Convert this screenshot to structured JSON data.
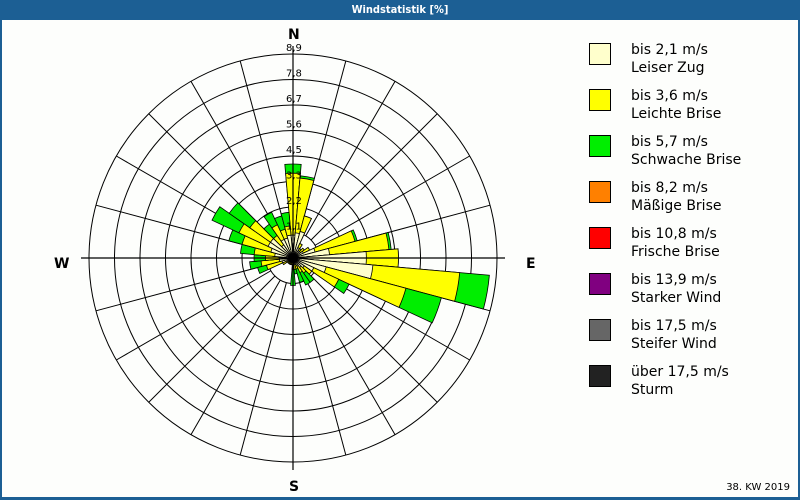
{
  "title": "Windstatistik [%]",
  "footer": "38. KW 2019",
  "compass": {
    "n": "N",
    "e": "E",
    "s": "S",
    "w": "W"
  },
  "legend": [
    {
      "range": "bis 2,1 m/s",
      "name": "Leiser Zug",
      "color": "#ffffcc"
    },
    {
      "range": "bis 3,6 m/s",
      "name": "Leichte Brise",
      "color": "#ffff00"
    },
    {
      "range": "bis 5,7 m/s",
      "name": "Schwache Brise",
      "color": "#00ee00"
    },
    {
      "range": "bis 8,2 m/s",
      "name": "Mäßige Brise",
      "color": "#ff8000"
    },
    {
      "range": "bis 10,8 m/s",
      "name": "Frische Brise",
      "color": "#ff0000"
    },
    {
      "range": "bis 13,9 m/s",
      "name": "Starker Wind",
      "color": "#800080"
    },
    {
      "range": "bis 17,5 m/s",
      "name": "Steifer Wind",
      "color": "#666666"
    },
    {
      "range": "über 17,5 m/s",
      "name": "Sturm",
      "color": "#222222"
    }
  ],
  "chart_data": {
    "type": "wind-rose",
    "title": "Windstatistik [%]",
    "period": "38. KW 2019",
    "ring_labels": [
      "1,1",
      "2,2",
      "3,3",
      "4,5",
      "5,6",
      "6,7",
      "7,8",
      "8,9"
    ],
    "rmax": 8.9,
    "sector_width_deg": 10,
    "series_names": [
      "bis 2,1 m/s",
      "bis 3,6 m/s",
      "bis 5,7 m/s"
    ],
    "sectors": [
      {
        "dir": 0,
        "cum": [
          1.0,
          3.7,
          4.1
        ]
      },
      {
        "dir": 10,
        "cum": [
          1.1,
          3.5,
          3.6
        ]
      },
      {
        "dir": 20,
        "cum": [
          1.2,
          1.9,
          1.9
        ]
      },
      {
        "dir": 30,
        "cum": [
          0.5,
          0.7,
          0.7
        ]
      },
      {
        "dir": 40,
        "cum": [
          0.4,
          0.5,
          0.5
        ]
      },
      {
        "dir": 50,
        "cum": [
          0.4,
          0.6,
          0.6
        ]
      },
      {
        "dir": 60,
        "cum": [
          0.5,
          0.8,
          0.8
        ]
      },
      {
        "dir": 70,
        "cum": [
          1.0,
          2.8,
          2.9
        ]
      },
      {
        "dir": 80,
        "cum": [
          1.6,
          4.2,
          4.3
        ]
      },
      {
        "dir": 90,
        "cum": [
          3.2,
          4.6,
          4.6
        ]
      },
      {
        "dir": 100,
        "cum": [
          3.5,
          7.3,
          8.6
        ]
      },
      {
        "dir": 110,
        "cum": [
          1.5,
          5.1,
          6.7
        ]
      },
      {
        "dir": 120,
        "cum": [
          1.0,
          2.2,
          2.7
        ]
      },
      {
        "dir": 130,
        "cum": [
          0.6,
          1.0,
          1.0
        ]
      },
      {
        "dir": 140,
        "cum": [
          0.5,
          0.8,
          1.3
        ]
      },
      {
        "dir": 150,
        "cum": [
          0.4,
          0.7,
          1.3
        ]
      },
      {
        "dir": 160,
        "cum": [
          0.3,
          0.5,
          1.1
        ]
      },
      {
        "dir": 170,
        "cum": [
          0.3,
          0.5,
          0.7
        ]
      },
      {
        "dir": 180,
        "cum": [
          0.3,
          0.5,
          1.2
        ]
      },
      {
        "dir": 190,
        "cum": [
          0.2,
          0.3,
          0.3
        ]
      },
      {
        "dir": 200,
        "cum": [
          0.2,
          0.3,
          0.3
        ]
      },
      {
        "dir": 210,
        "cum": [
          0.2,
          0.3,
          0.3
        ]
      },
      {
        "dir": 220,
        "cum": [
          0.2,
          0.3,
          0.3
        ]
      },
      {
        "dir": 230,
        "cum": [
          0.2,
          0.3,
          0.3
        ]
      },
      {
        "dir": 240,
        "cum": [
          0.3,
          0.5,
          0.5
        ]
      },
      {
        "dir": 250,
        "cum": [
          0.5,
          1.2,
          1.6
        ]
      },
      {
        "dir": 260,
        "cum": [
          0.6,
          1.4,
          1.9
        ]
      },
      {
        "dir": 270,
        "cum": [
          0.6,
          1.2,
          1.7
        ]
      },
      {
        "dir": 280,
        "cum": [
          0.8,
          1.7,
          2.3
        ]
      },
      {
        "dir": 290,
        "cum": [
          1.0,
          2.3,
          2.9
        ]
      },
      {
        "dir": 300,
        "cum": [
          1.2,
          2.6,
          3.9
        ]
      },
      {
        "dir": 310,
        "cum": [
          1.2,
          2.3,
          3.4
        ]
      },
      {
        "dir": 320,
        "cum": [
          0.7,
          1.2,
          1.8
        ]
      },
      {
        "dir": 330,
        "cum": [
          0.9,
          1.6,
          2.2
        ]
      },
      {
        "dir": 340,
        "cum": [
          0.9,
          1.3,
          1.9
        ]
      },
      {
        "dir": 350,
        "cum": [
          1.0,
          1.4,
          2.0
        ]
      }
    ]
  }
}
